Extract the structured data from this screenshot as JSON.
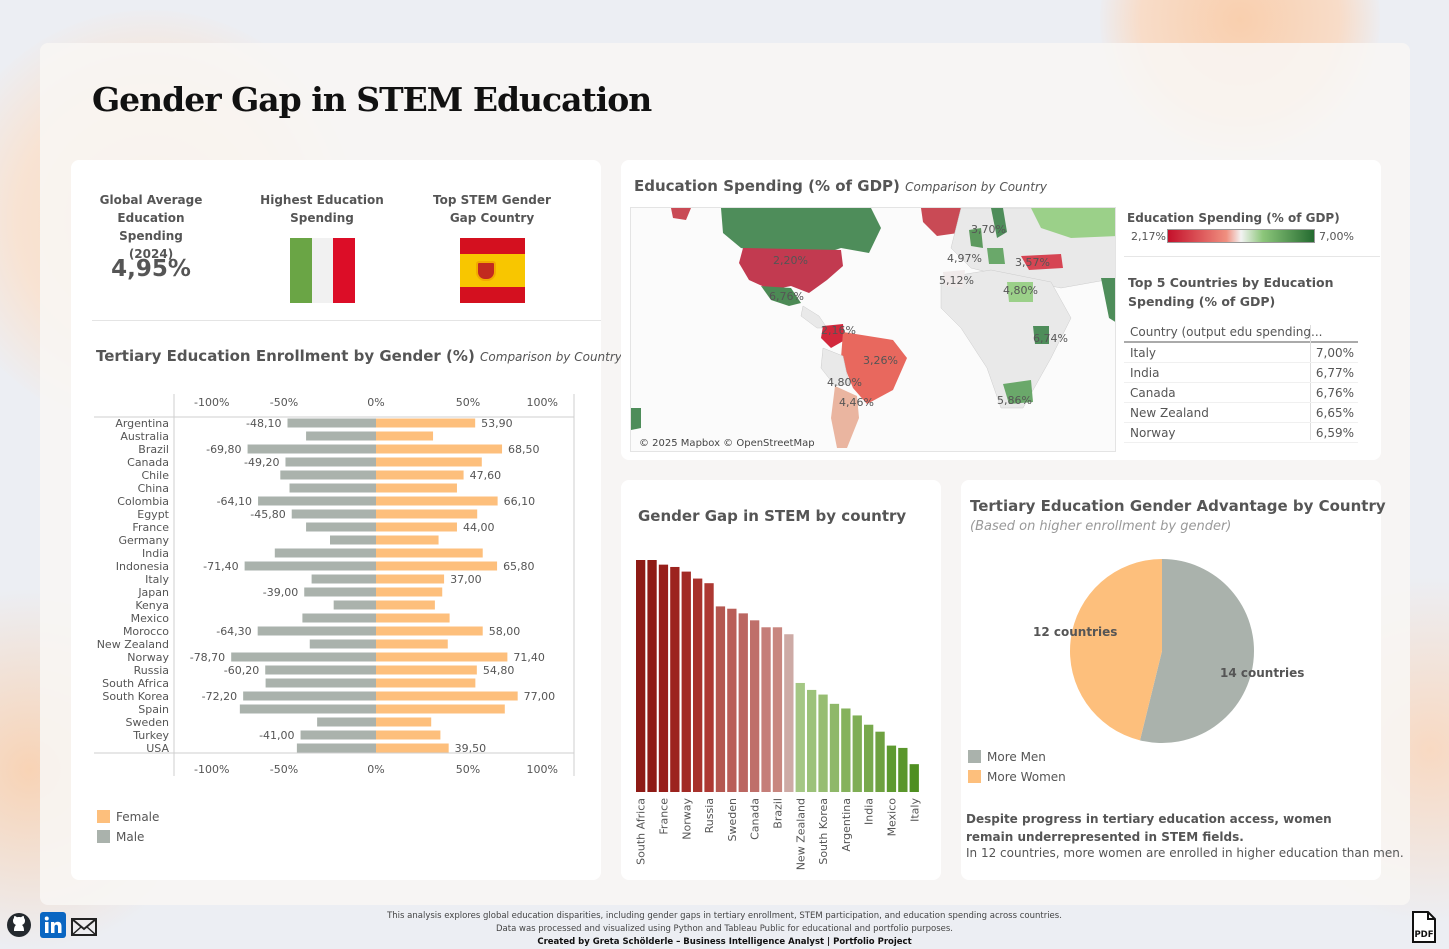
{
  "title": "Gender Gap in STEM Education",
  "kpis": {
    "avg_label": "Global Average Education Spending (2024)",
    "avg_value": "4,95%",
    "highest_label": "Highest Education Spending",
    "top_gap_label": "Top STEM Gender Gap Country"
  },
  "enrollment": {
    "title": "Tertiary Education Enrollment by Gender (%)",
    "subtitle": "Comparison by Country",
    "legend_female": "Female",
    "legend_male": "Male",
    "colors": {
      "female": "#fdbf7c",
      "male": "#aab2ac"
    }
  },
  "map": {
    "title": "Education Spending (% of GDP)",
    "subtitle": "Comparison by Country",
    "attribution": "© 2025 Mapbox © OpenStreetMap",
    "legend_title": "Education Spending (% of GDP)",
    "legend_min": "2,17%",
    "legend_max": "7,00%",
    "labels": [
      "3,70%",
      "2,20%",
      "4,97%",
      "3,57%",
      "5,12%",
      "4,80%",
      "6,74%",
      "3,26%",
      "4,80%",
      "4,46%",
      "5,86%",
      "6,76%",
      "2,16%"
    ]
  },
  "top5": {
    "title": "Top 5 Countries by Education Spending (% of GDP)",
    "column_header": "Country (output edu spending...",
    "rows": [
      {
        "country": "Italy",
        "value": "7,00%"
      },
      {
        "country": "India",
        "value": "6,77%"
      },
      {
        "country": "Canada",
        "value": "6,76%"
      },
      {
        "country": "New Zealand",
        "value": "6,65%"
      },
      {
        "country": "Norway",
        "value": "6,59%"
      }
    ]
  },
  "stem": {
    "title": "Gender Gap in STEM by country"
  },
  "advantage": {
    "title": "Tertiary Education Gender Advantage by Country",
    "subtitle": "(Based on higher enrollment by gender)",
    "label_women": "12 countries",
    "label_men": "14 countries",
    "legend_men": "More Men",
    "legend_women": "More Women",
    "note_bold": "Despite progress in tertiary education access, women remain underrepresented in STEM fields.",
    "note": "In 12 countries, more women are enrolled in higher education than men."
  },
  "footer": {
    "line1": "This analysis explores global education disparities, including gender gaps in tertiary enrollment, STEM participation, and education spending across countries.",
    "line2": "Data was processed and visualized using Python and Tableau Public for educational and portfolio purposes.",
    "line3": "Created by Greta Schölderle – Business Intelligence Analyst | Portfolio Project"
  },
  "chart_data": [
    {
      "type": "bar",
      "title": "Tertiary Education Enrollment by Gender (%)",
      "orientation": "horizontal-diverging",
      "categories": [
        "Argentina",
        "Australia",
        "Brazil",
        "Canada",
        "Chile",
        "China",
        "Colombia",
        "Egypt",
        "France",
        "Germany",
        "India",
        "Indonesia",
        "Italy",
        "Japan",
        "Kenya",
        "Mexico",
        "Morocco",
        "New Zealand",
        "Norway",
        "Russia",
        "South Africa",
        "South Korea",
        "Spain",
        "Sweden",
        "Turkey",
        "USA"
      ],
      "series": [
        {
          "name": "Female",
          "values": [
            53.9,
            31,
            68.5,
            57.5,
            47.6,
            44,
            66.1,
            55,
            44,
            34,
            58,
            65.8,
            37,
            36,
            32,
            40,
            58,
            39,
            71.4,
            54.8,
            54,
            77,
            70,
            30,
            35,
            39.5
          ]
        },
        {
          "name": "Male",
          "values": [
            -48.1,
            -38,
            -69.8,
            -49.2,
            -52,
            -47,
            -64.1,
            -45.8,
            -38,
            -25,
            -55,
            -71.4,
            -35,
            -39,
            -23,
            -40,
            -64.3,
            -36,
            -78.7,
            -60.2,
            -60,
            -72.2,
            -74,
            -32,
            -41,
            -43
          ]
        }
      ],
      "data_labels": {
        "Argentina": [
          "-48,10",
          "53,90"
        ],
        "Brazil": [
          "-69,80",
          "68,50"
        ],
        "Canada": [
          "-49,20",
          ""
        ],
        "Chile": [
          "",
          "47,60"
        ],
        "Colombia": [
          "-64,10",
          "66,10"
        ],
        "Egypt": [
          "-45,80",
          ""
        ],
        "France": [
          "",
          "44,00"
        ],
        "Indonesia": [
          "-71,40",
          "65,80"
        ],
        "Italy": [
          "",
          "37,00"
        ],
        "Japan": [
          "-39,00",
          ""
        ],
        "Morocco": [
          "-64,30",
          "58,00"
        ],
        "Norway": [
          "-78,70",
          "71,40"
        ],
        "Russia": [
          "-60,20",
          "54,80"
        ],
        "South Korea": [
          "-72,20",
          "77,00"
        ],
        "Turkey": [
          "-41,00",
          ""
        ],
        "USA": [
          "",
          "39,50"
        ]
      },
      "ticks": [
        "-100%",
        "-50%",
        "0%",
        "50%",
        "100%"
      ],
      "xlim": [
        -100,
        100
      ]
    },
    {
      "type": "bar",
      "title": "Gender Gap in STEM by country",
      "categories": [
        "South Africa",
        "",
        "France",
        "",
        "Norway",
        "",
        "Russia",
        "",
        "Sweden",
        "",
        "Canada",
        "",
        "Brazil",
        "",
        "New Zealand",
        "",
        "South Korea",
        "",
        "Argentina",
        "",
        "India",
        "",
        "Mexico",
        "",
        "Italy"
      ],
      "values": [
        100,
        100,
        98,
        97,
        95,
        92,
        90,
        80,
        79,
        77,
        74,
        71,
        71,
        68,
        47,
        44,
        42,
        38,
        36,
        33,
        29,
        26,
        20,
        19,
        12
      ],
      "colors": [
        "#8e1a15",
        "#8e1a15",
        "#971e1a",
        "#9c231e",
        "#a22a25",
        "#a8322c",
        "#ad3832",
        "#b45750",
        "#b95e58",
        "#bb6661",
        "#bf6f6a",
        "#c57e79",
        "#c8867f",
        "#cdaaa5",
        "#a4c784",
        "#9cc27a",
        "#97bd72",
        "#8fb869",
        "#85b25c",
        "#7fae55",
        "#78a94d",
        "#6ea140",
        "#5e9a30",
        "#5a962b",
        "#4f8f21"
      ]
    },
    {
      "type": "pie",
      "title": "Tertiary Education Gender Advantage by Country",
      "slices": [
        {
          "name": "More Men",
          "value": 14,
          "color": "#aab2ac"
        },
        {
          "name": "More Women",
          "value": 12,
          "color": "#fdbf7c"
        }
      ]
    }
  ]
}
